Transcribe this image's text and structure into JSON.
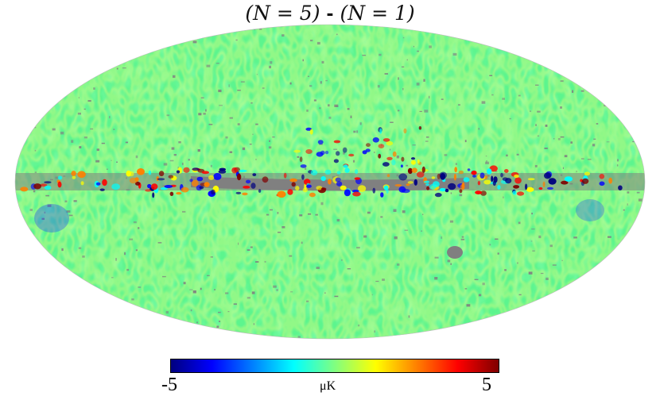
{
  "title": {
    "left": "(N = 5)",
    "separator": "-",
    "right": "(N = 1)"
  },
  "map": {
    "projection": "mollweide",
    "background_color": "#5cf58e",
    "mask_color": "#808080",
    "description_colors": {
      "low": "#00007f",
      "mid": "#66ff99",
      "high": "#7f0000"
    }
  },
  "colorbar": {
    "min_label": "-5",
    "max_label": "5",
    "unit_label": "μK",
    "colors": [
      "#00007f",
      "#0000ff",
      "#0080ff",
      "#00ffff",
      "#80ff80",
      "#ffff00",
      "#ff8000",
      "#ff0000",
      "#7f0000"
    ]
  }
}
